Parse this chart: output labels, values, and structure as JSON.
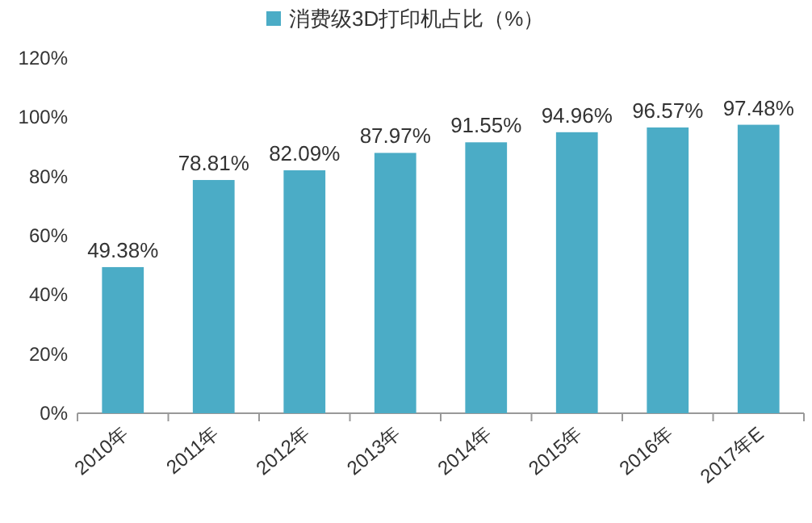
{
  "chart_data": {
    "type": "bar",
    "categories": [
      "2010年",
      "2011年",
      "2012年",
      "2013年",
      "2014年",
      "2015年",
      "2016年",
      "2017年E"
    ],
    "series": [
      {
        "name": "消费级3D打印机占比（%）",
        "color": "#4bacc6",
        "values": [
          49.38,
          78.81,
          82.09,
          87.97,
          91.55,
          94.96,
          96.57,
          97.48
        ]
      }
    ],
    "value_labels": [
      "49.38%",
      "78.81%",
      "82.09%",
      "87.97%",
      "91.55%",
      "94.96%",
      "96.57%",
      "97.48%"
    ],
    "ylim": [
      0,
      120
    ],
    "yticks": [
      {
        "value": 0,
        "label": "0%"
      },
      {
        "value": 20,
        "label": "20%"
      },
      {
        "value": 40,
        "label": "40%"
      },
      {
        "value": 60,
        "label": "60%"
      },
      {
        "value": 80,
        "label": "80%"
      },
      {
        "value": 100,
        "label": "100%"
      },
      {
        "value": 120,
        "label": "120%"
      }
    ],
    "legend": "top"
  }
}
